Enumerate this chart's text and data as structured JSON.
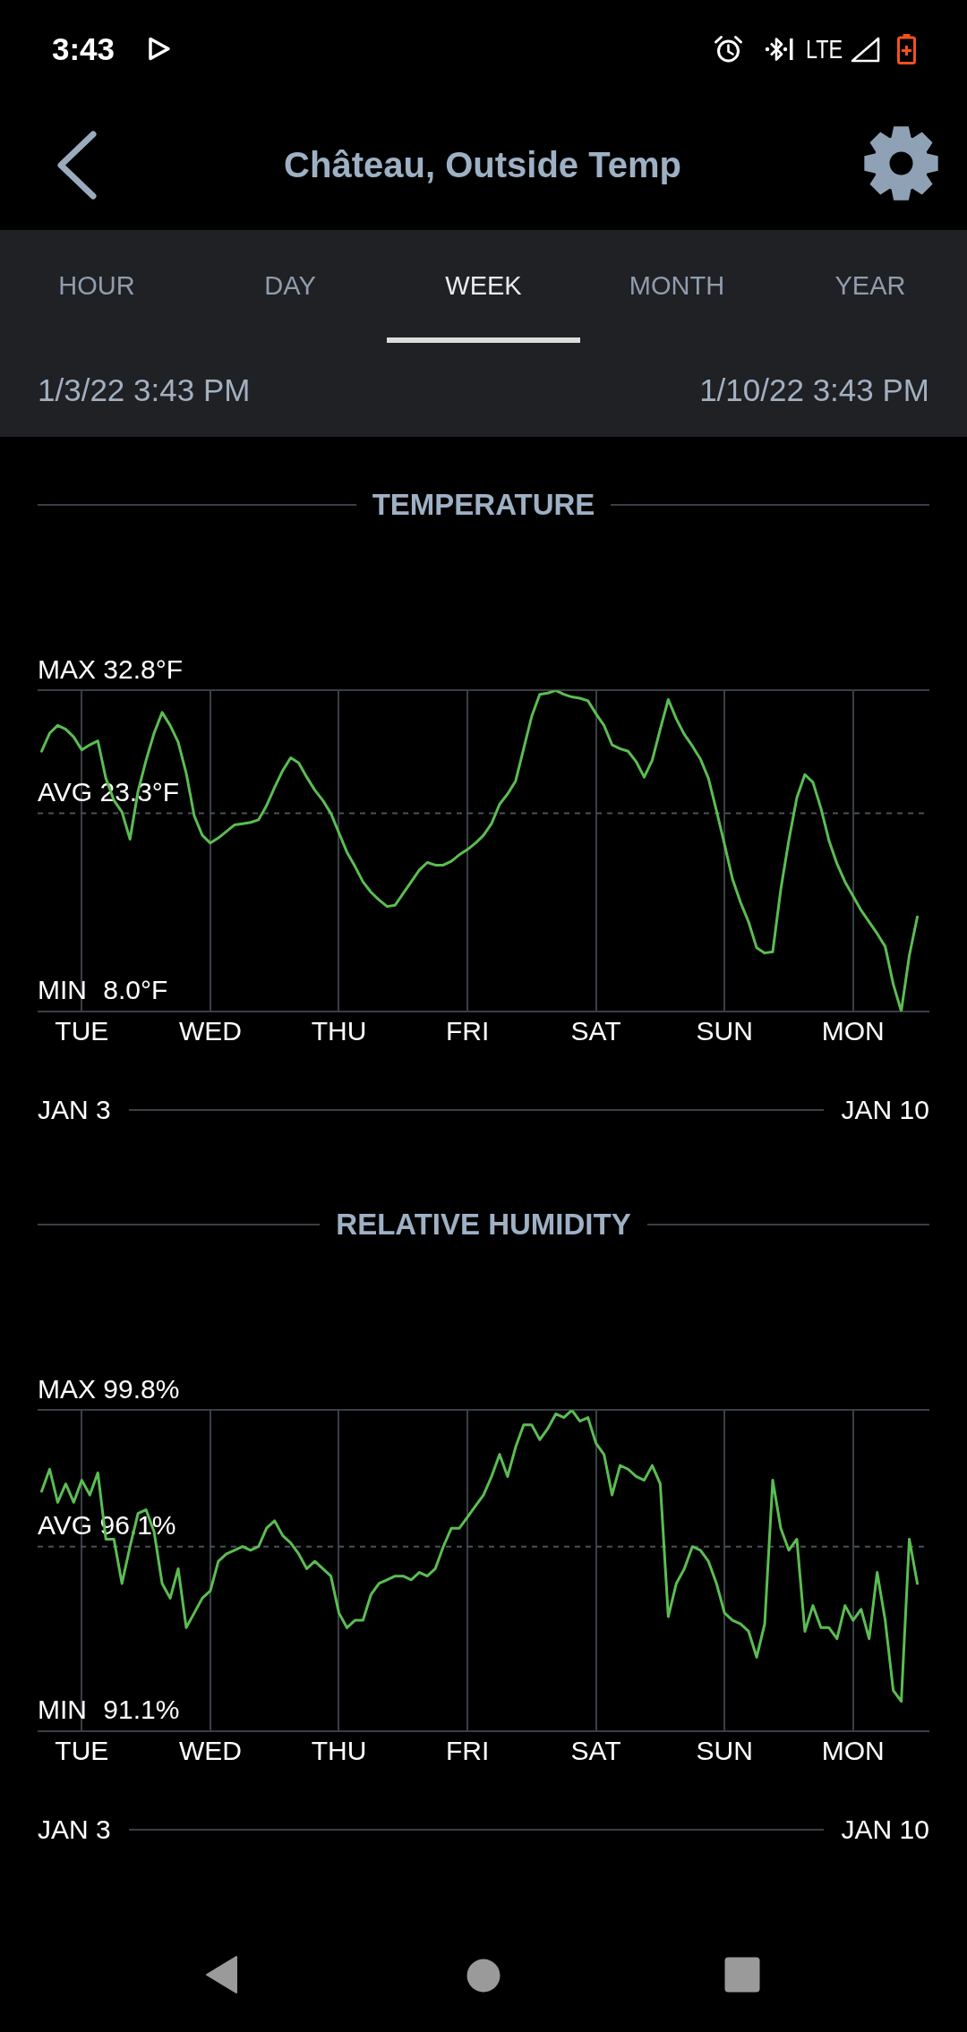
{
  "chart_data": [
    {
      "type": "other",
      "title": "Château, Outside Temp",
      "annotations": [
        "3:43",
        "LTE",
        "HOUR",
        "DAY",
        "WEEK",
        "MONTH",
        "YEAR",
        "1/3/22 3:43 PM",
        "1/10/22 3:43 PM"
      ]
    },
    {
      "type": "line",
      "title": "TEMPERATURE",
      "color": "#5bbd52",
      "categories": [
        null,
        null,
        null,
        null,
        null,
        "TUE",
        null,
        null,
        null,
        null,
        null,
        null,
        null,
        null,
        null,
        null,
        null,
        null,
        null,
        null,
        null,
        "WED",
        null,
        null,
        null,
        null,
        null,
        null,
        null,
        null,
        null,
        null,
        null,
        null,
        null,
        null,
        null,
        "THU",
        null,
        null,
        null,
        null,
        null,
        null,
        null,
        null,
        null,
        null,
        null,
        null,
        null,
        null,
        null,
        "FRI",
        null,
        null,
        null,
        null,
        null,
        null,
        null,
        null,
        null,
        null,
        null,
        null,
        null,
        null,
        null,
        "SAT",
        null,
        null,
        null,
        null,
        null,
        null,
        null,
        null,
        null,
        null,
        null,
        null,
        null,
        null,
        null,
        "SUN",
        null,
        null,
        null,
        null,
        null,
        null,
        null,
        null,
        null,
        null,
        null,
        null,
        null,
        null,
        null,
        "MON",
        null,
        null,
        null,
        null,
        null,
        null,
        null,
        null,
        null
      ],
      "values": [
        28.1,
        29.5,
        30.1,
        29.8,
        29.2,
        28.2,
        28.6,
        28.9,
        26.0,
        24.3,
        23.4,
        21.3,
        25.0,
        27.4,
        29.5,
        31.1,
        30.1,
        28.8,
        26.4,
        23.1,
        21.6,
        21.0,
        21.4,
        21.9,
        22.4,
        22.5,
        22.6,
        22.8,
        23.9,
        25.3,
        26.6,
        27.6,
        27.2,
        26.1,
        25.1,
        24.3,
        23.3,
        21.8,
        20.3,
        19.2,
        18.0,
        17.2,
        16.6,
        16.1,
        16.2,
        17.1,
        18.0,
        18.9,
        19.5,
        19.3,
        19.3,
        19.6,
        20.1,
        20.5,
        21.0,
        21.6,
        22.5,
        24.0,
        24.8,
        25.8,
        28.3,
        30.8,
        32.5,
        32.6,
        32.8,
        32.5,
        32.3,
        32.2,
        32.0,
        31.0,
        30.1,
        28.6,
        28.3,
        28.1,
        27.3,
        26.1,
        27.4,
        29.8,
        32.1,
        30.6,
        29.4,
        28.5,
        27.5,
        26.0,
        23.5,
        20.9,
        18.2,
        16.4,
        14.9,
        12.9,
        12.5,
        12.6,
        17.4,
        21.2,
        24.5,
        26.3,
        25.7,
        23.7,
        21.2,
        19.4,
        18.0,
        16.9,
        15.8,
        14.9,
        14.0,
        13.0,
        10.1,
        8.0,
        12.3,
        15.3,
        null
      ],
      "ylim": [
        8.0,
        32.8
      ],
      "yticks": [
        {
          "value": 32.8,
          "label": "32.8°F"
        },
        {
          "value": 8.0,
          "label": "8.0°F"
        }
      ],
      "ref_lines": [
        {
          "axis": "y",
          "value": 23.3,
          "label": "AVG 23.3°F",
          "line_style": "dashed",
          "color": "#4b5058"
        }
      ],
      "grid": true,
      "annotations": [
        "MAX",
        "MIN",
        "JAN 3",
        "JAN 10"
      ]
    },
    {
      "type": "line",
      "title": "RELATIVE HUMIDITY",
      "color": "#5bbd52",
      "categories": [
        null,
        null,
        null,
        null,
        null,
        "TUE",
        null,
        null,
        null,
        null,
        null,
        null,
        null,
        null,
        null,
        null,
        null,
        null,
        null,
        null,
        null,
        "WED",
        null,
        null,
        null,
        null,
        null,
        null,
        null,
        null,
        null,
        null,
        null,
        null,
        null,
        null,
        null,
        "THU",
        null,
        null,
        null,
        null,
        null,
        null,
        null,
        null,
        null,
        null,
        null,
        null,
        null,
        null,
        null,
        "FRI",
        null,
        null,
        null,
        null,
        null,
        null,
        null,
        null,
        null,
        null,
        null,
        null,
        null,
        null,
        null,
        "SAT",
        null,
        null,
        null,
        null,
        null,
        null,
        null,
        null,
        null,
        null,
        null,
        null,
        null,
        null,
        null,
        "SUN",
        null,
        null,
        null,
        null,
        null,
        null,
        null,
        null,
        null,
        null,
        null,
        null,
        null,
        null,
        null,
        "MON",
        null,
        null,
        null,
        null,
        null,
        null,
        null,
        null,
        null
      ],
      "values": [
        97.6,
        98.2,
        97.3,
        97.8,
        97.3,
        97.9,
        97.5,
        98.1,
        96.3,
        96.3,
        95.1,
        96.1,
        97.0,
        97.1,
        96.5,
        95.1,
        94.7,
        95.5,
        93.9,
        94.3,
        94.7,
        94.9,
        95.7,
        95.9,
        96.0,
        96.1,
        96.0,
        96.1,
        96.6,
        96.8,
        96.4,
        96.2,
        95.9,
        95.5,
        95.7,
        95.5,
        95.3,
        94.3,
        93.9,
        94.1,
        94.1,
        94.8,
        95.1,
        95.2,
        95.3,
        95.3,
        95.2,
        95.4,
        95.3,
        95.5,
        96.1,
        96.6,
        96.6,
        96.9,
        97.2,
        97.5,
        98.0,
        98.6,
        98.0,
        98.8,
        99.4,
        99.4,
        99.0,
        99.3,
        99.7,
        99.6,
        99.8,
        99.5,
        99.6,
        98.9,
        98.6,
        97.5,
        98.3,
        98.2,
        98.0,
        97.9,
        98.3,
        97.8,
        94.2,
        95.1,
        95.5,
        96.1,
        96.0,
        95.7,
        95.1,
        94.3,
        94.1,
        94.0,
        93.8,
        93.1,
        94.0,
        97.9,
        96.6,
        96.0,
        96.3,
        93.8,
        94.5,
        93.9,
        93.9,
        93.6,
        94.5,
        94.1,
        94.4,
        93.6,
        95.4,
        94.1,
        92.2,
        91.9,
        96.3,
        95.1,
        null
      ],
      "ylim": [
        91.1,
        99.8
      ],
      "yticks": [
        {
          "value": 99.8,
          "label": "99.8%"
        },
        {
          "value": 91.1,
          "label": "91.1%"
        }
      ],
      "ref_lines": [
        {
          "axis": "y",
          "value": 96.1,
          "label": "AVG 96.1%",
          "line_style": "dashed",
          "color": "#4b5058"
        }
      ],
      "grid": true,
      "annotations": [
        "MAX",
        "MIN",
        "JAN 3",
        "JAN 10"
      ]
    }
  ]
}
